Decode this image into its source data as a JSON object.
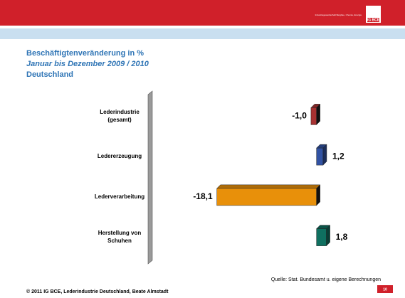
{
  "header": {
    "logo": "IG BCE",
    "tagline": "Industriegewerkschaft Bergbau, Chemie, Energie"
  },
  "chart_data": {
    "type": "hbar",
    "title": "Beschäftigtenveränderung in %",
    "subtitle": "Januar bis Dezember  2009 / 2010",
    "region": "Deutschland",
    "categories": [
      "Lederindustrie\n(gesamt)",
      "Ledererzeugung",
      "Lederverarbeitung",
      "Herstellung von\nSchuhen"
    ],
    "values": [
      -1.0,
      1.2,
      -18.1,
      1.8
    ],
    "value_labels": [
      "-1,0",
      "1,2",
      "-18,1",
      "1,8"
    ],
    "colors": [
      "#a83232",
      "#3152a3",
      "#e8900a",
      "#0f7060"
    ],
    "xlim": [
      -20,
      2.5
    ]
  },
  "source": "Quelle: Stat. Bundesamt u. eigene Berechnungen",
  "footer": "© 2011 IG BCE, Lederindustrie Deutschland, Beate Almstadt",
  "page_number": "10"
}
